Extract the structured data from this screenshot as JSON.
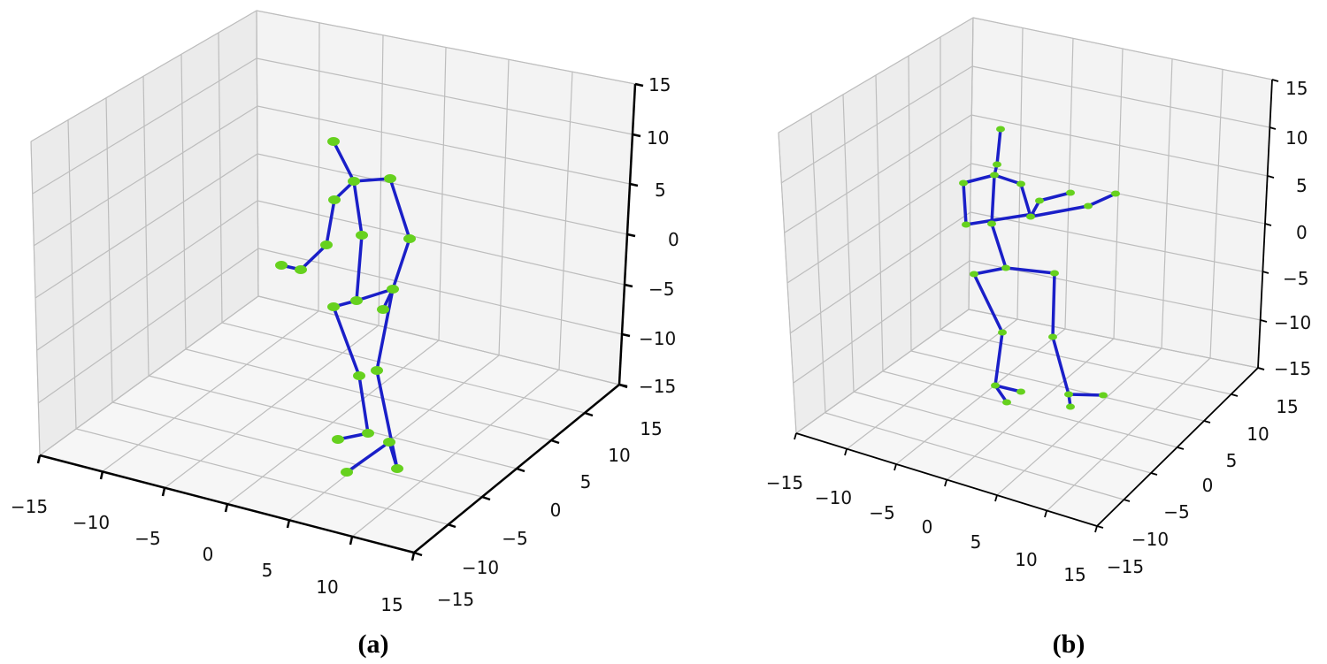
{
  "chart_data": [
    {
      "type": "scatter",
      "caption": "(a)",
      "grid": true,
      "xlim": [
        -15,
        15
      ],
      "ylim": [
        -15,
        15
      ],
      "zlim": [
        -15,
        15
      ],
      "x_ticks": [
        "−15",
        "−10",
        "−5",
        "0",
        "5",
        "10",
        "15"
      ],
      "y_ticks": [
        "−15",
        "−10",
        "−5",
        "0",
        "5",
        "10",
        "15"
      ],
      "z_ticks": [
        "15",
        "10",
        "5",
        "0",
        "−5",
        "−10",
        "−15"
      ],
      "colors": {
        "bones": "#1a1fc8",
        "joints": "#66d11e",
        "grid": "#bdbdbd",
        "pane_left": "#ececec",
        "pane_back": "#f3f3f3",
        "pane_floor": "#f6f6f6"
      }
    },
    {
      "type": "scatter",
      "caption": "(b)",
      "grid": true,
      "xlim": [
        -15,
        15
      ],
      "ylim": [
        -15,
        15
      ],
      "zlim": [
        -15,
        15
      ],
      "x_ticks": [
        "−15",
        "−10",
        "−5",
        "0",
        "5",
        "10",
        "15"
      ],
      "y_ticks": [
        "−15",
        "−10",
        "−5",
        "0",
        "5",
        "10",
        "15"
      ],
      "z_ticks": [
        "15",
        "10",
        "5",
        "0",
        "−5",
        "−10",
        "−15"
      ],
      "colors": {
        "bones": "#1a1fc8",
        "joints": "#66d11e",
        "grid": "#bdbdbd",
        "pane_left": "#ececec",
        "pane_back": "#f3f3f3",
        "pane_floor": "#f6f6f6"
      }
    }
  ]
}
